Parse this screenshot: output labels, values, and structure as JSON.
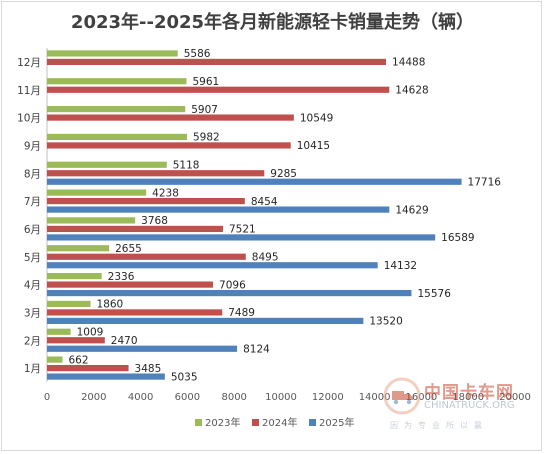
{
  "chart_data": {
    "type": "bar",
    "orientation": "horizontal",
    "title": "2023年--2025年各月新能源轻卡销量走势（辆）",
    "categories": [
      "1月",
      "2月",
      "3月",
      "4月",
      "5月",
      "6月",
      "7月",
      "8月",
      "9月",
      "10月",
      "11月",
      "12月"
    ],
    "series": [
      {
        "name": "2023年",
        "color": "#9bbb59",
        "values": [
          662,
          1009,
          1860,
          2336,
          2655,
          3768,
          4238,
          5118,
          5982,
          5907,
          5961,
          5586
        ]
      },
      {
        "name": "2024年",
        "color": "#c0504d",
        "values": [
          3485,
          2470,
          7489,
          7096,
          8495,
          7521,
          8454,
          9285,
          10415,
          10549,
          14628,
          14488
        ]
      },
      {
        "name": "2025年",
        "color": "#4f81bd",
        "values": [
          5035,
          8124,
          13520,
          15576,
          14132,
          16589,
          14629,
          17716,
          null,
          null,
          null,
          null
        ]
      }
    ],
    "xlim": [
      0,
      20000
    ],
    "xticks": [
      0,
      2000,
      4000,
      6000,
      8000,
      10000,
      12000,
      14000,
      16000,
      18000,
      20000
    ],
    "grid": false,
    "legend": "bottom"
  },
  "watermark": {
    "line1": "中国卡车网",
    "line2": "CHINATRUCK.ORG",
    "line3": "因为专业所以赢"
  }
}
